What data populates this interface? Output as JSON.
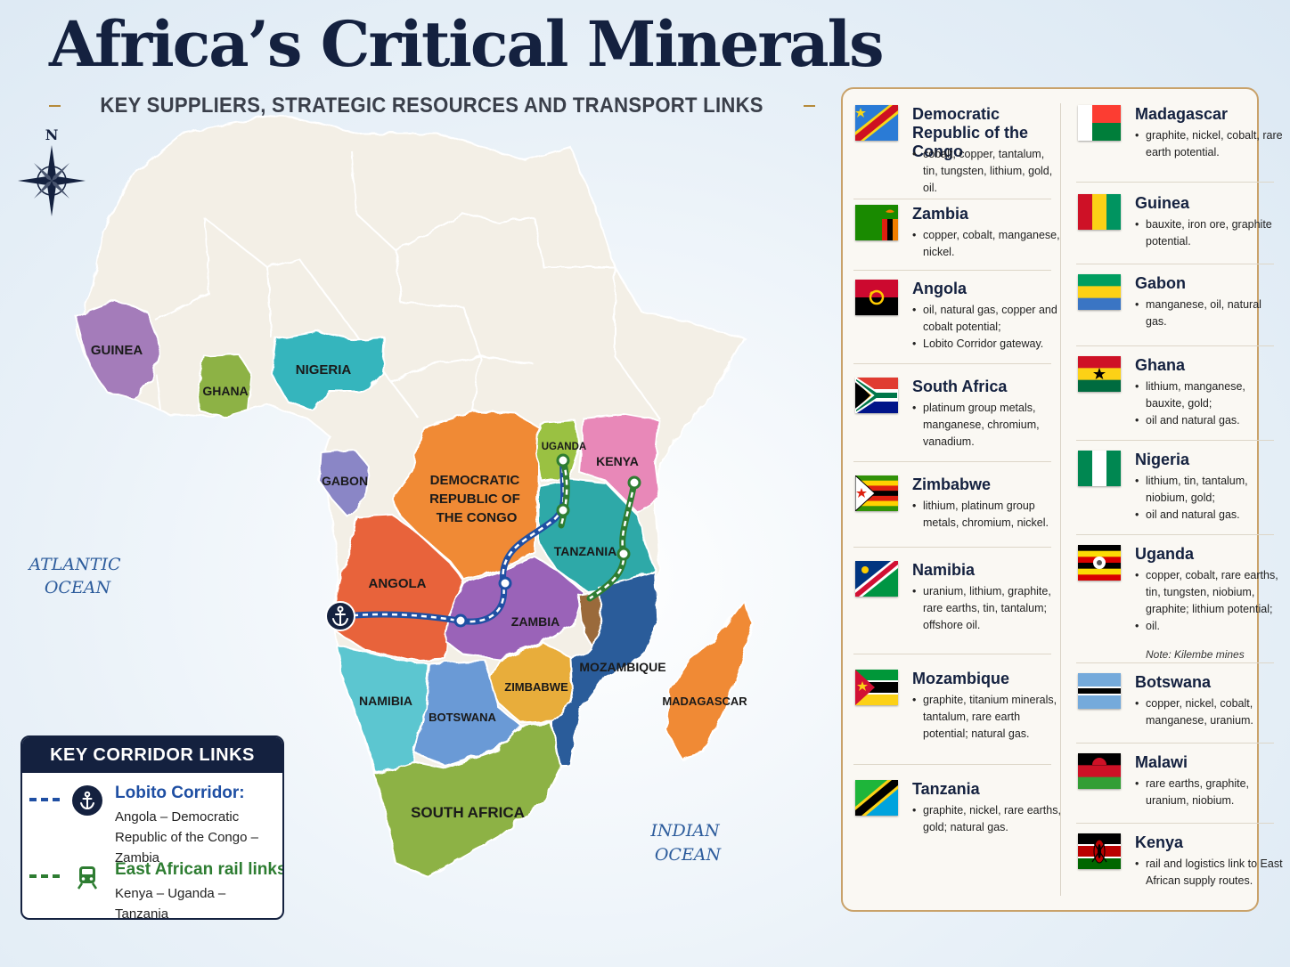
{
  "title": "Africa’s Critical Minerals",
  "subtitle": "KEY SUPPLIERS, STRATEGIC RESOURCES AND TRANSPORT LINKS",
  "compass": {
    "label": "N",
    "icon": "compass-rose-icon"
  },
  "oceans": {
    "atlantic": [
      "ATLANTIC",
      "OCEAN"
    ],
    "indian": [
      "INDIAN",
      "OCEAN"
    ]
  },
  "map_labels": {
    "guinea": "GUINEA",
    "ghana": "GHANA",
    "nigeria": "NIGERIA",
    "gabon": "GABON",
    "drc": [
      "DEMOCRATIC",
      "REPUBLIC OF",
      "THE CONGO"
    ],
    "uganda": "UGANDA",
    "kenya": "KENYA",
    "tanzania": "TANZANIA",
    "angola": "ANGOLA",
    "zambia": "ZAMBIA",
    "mozambique": "MOZAMBIQUE",
    "zimbabwe": "ZIMBABWE",
    "namibia": "NAMIBIA",
    "botswana": "BOTSWANA",
    "madagascar": "MADAGASCAR",
    "south_africa": "SOUTH AFRICA"
  },
  "colors": {
    "land": "#f3efe6",
    "guinea": "#a47cba",
    "ghana": "#8db244",
    "nigeria": "#36b5bd",
    "gabon": "#8a86c6",
    "drc": "#f08a35",
    "uganda": "#9ac142",
    "kenya": "#e888b8",
    "tanzania": "#2fa9a8",
    "angola": "#e8643a",
    "zambia": "#9a64b8",
    "malawi": "#9a6a3a",
    "mozambique": "#2a5c9a",
    "zimbabwe": "#e8ad3a",
    "namibia": "#5cc6d0",
    "botswana": "#6a9ad6",
    "madagascar": "#f08a35",
    "south_africa": "#8db244",
    "lobito": "#1f4fa3",
    "east_african_rail": "#2e7d32",
    "navy": "#14213f"
  },
  "corridor_key": {
    "title": "KEY CORRIDOR LINKS",
    "items": [
      {
        "name": "Lobito Corridor:",
        "description": "Angola – Democratic Republic of the Congo – Zambia",
        "icon": "anchor-icon"
      },
      {
        "name": "East African rail links:",
        "description": "Kenya – Uganda – Tanzania",
        "icon": "train-icon"
      }
    ]
  },
  "legend": {
    "left": [
      {
        "name": "Democratic Republic of the Congo",
        "flag": "drc",
        "minerals": [
          "cobalt, copper, tantalum, tin, tungsten, lithium, gold, oil."
        ]
      },
      {
        "name": "Zambia",
        "flag": "zambia",
        "minerals": [
          "copper, cobalt, manganese, nickel."
        ]
      },
      {
        "name": "Angola",
        "flag": "angola",
        "minerals": [
          "oil, natural gas, copper and cobalt potential;",
          "Lobito Corridor gateway."
        ]
      },
      {
        "name": "South Africa",
        "flag": "south_africa",
        "minerals": [
          "platinum group metals, manganese, chromium, vanadium."
        ]
      },
      {
        "name": "Zimbabwe",
        "flag": "zimbabwe",
        "minerals": [
          "lithium, platinum group metals, chromium, nickel."
        ]
      },
      {
        "name": "Namibia",
        "flag": "namibia",
        "minerals": [
          "uranium, lithium, graphite, rare earths, tin, tantalum; offshore oil."
        ]
      },
      {
        "name": "Mozambique",
        "flag": "mozambique",
        "minerals": [
          "graphite, titanium minerals, tantalum, rare earth potential; natural gas."
        ]
      },
      {
        "name": "Tanzania",
        "flag": "tanzania",
        "minerals": [
          "graphite, nickel, rare earths, gold; natural gas."
        ]
      }
    ],
    "right": [
      {
        "name": "Madagascar",
        "flag": "madagascar",
        "minerals": [
          "graphite, nickel, cobalt, rare earth potential."
        ]
      },
      {
        "name": "Guinea",
        "flag": "guinea",
        "minerals": [
          "bauxite, iron ore, graphite potential."
        ]
      },
      {
        "name": "Gabon",
        "flag": "gabon",
        "minerals": [
          "manganese, oil, natural gas."
        ]
      },
      {
        "name": "Ghana",
        "flag": "ghana",
        "minerals": [
          "lithium, manganese, bauxite, gold;",
          "oil and natural gas."
        ]
      },
      {
        "name": "Nigeria",
        "flag": "nigeria",
        "minerals": [
          "lithium, tin, tantalum, niobium, gold;",
          "oil and natural gas."
        ]
      },
      {
        "name": "Uganda",
        "flag": "uganda",
        "minerals": [
          "copper, cobalt, rare earths, tin, tungsten, niobium, graphite; lithium potential;",
          "oil."
        ],
        "note": "Note:  Kilembe mines"
      },
      {
        "name": "Botswana",
        "flag": "botswana",
        "minerals": [
          "copper, nickel, cobalt, manganese, uranium."
        ]
      },
      {
        "name": "Malawi",
        "flag": "malawi",
        "minerals": [
          "rare earths, graphite, uranium, niobium."
        ]
      },
      {
        "name": "Kenya",
        "flag": "kenya",
        "minerals": [
          "rail and logistics link to East African supply routes."
        ]
      }
    ]
  }
}
